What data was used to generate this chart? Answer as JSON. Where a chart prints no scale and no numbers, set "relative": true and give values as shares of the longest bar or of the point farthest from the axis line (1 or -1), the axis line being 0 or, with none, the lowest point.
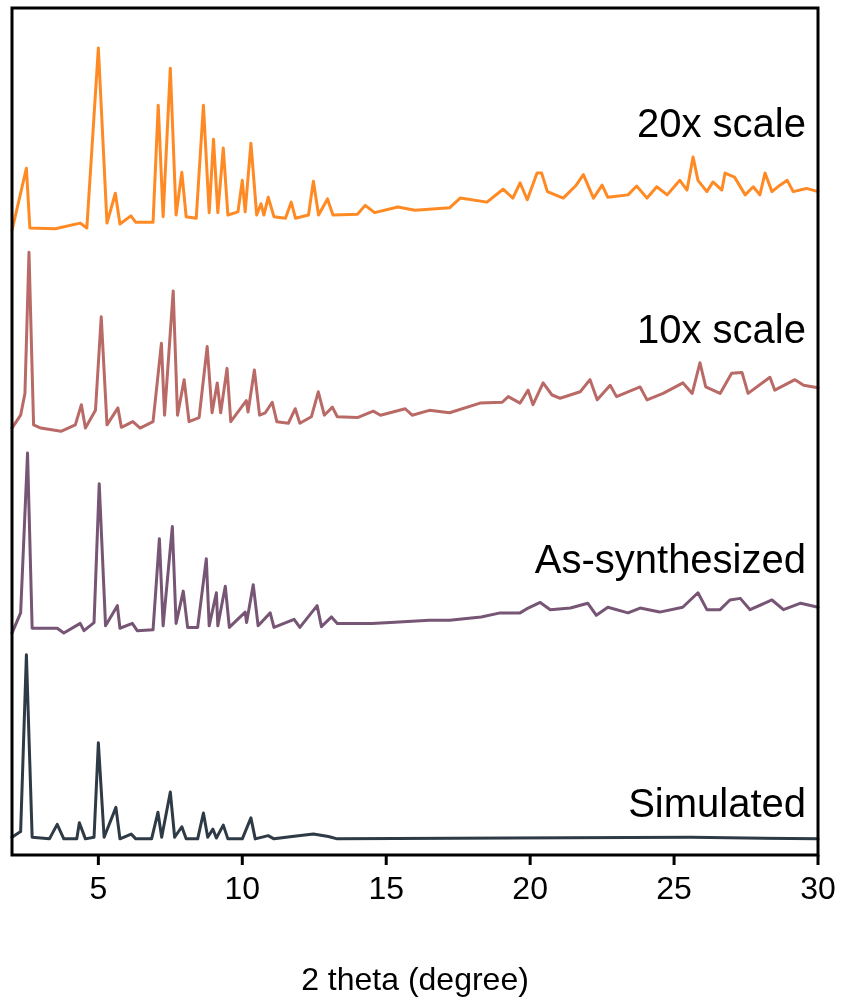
{
  "chart_data": {
    "type": "line",
    "xlabel": "2 theta (degree)",
    "xlim": [
      2,
      30
    ],
    "xticks": [
      5,
      10,
      15,
      20,
      25,
      30
    ],
    "relative": true,
    "grid": false,
    "marker": "none",
    "line_style": "solid",
    "series": [
      {
        "name": "20x scale",
        "color": "#ff8a24",
        "x": [
          2.0,
          2.5,
          2.62,
          3.5,
          4.37,
          4.6,
          5.0,
          5.3,
          5.59,
          5.75,
          6.13,
          6.3,
          6.9,
          7.08,
          7.25,
          7.5,
          7.7,
          7.9,
          8.05,
          8.4,
          8.65,
          8.85,
          9.0,
          9.15,
          9.34,
          9.5,
          9.85,
          10.0,
          10.1,
          10.3,
          10.5,
          10.65,
          10.75,
          10.9,
          11.1,
          11.5,
          11.7,
          11.85,
          12.3,
          12.47,
          12.65,
          12.96,
          13.15,
          14.0,
          14.27,
          14.6,
          15.4,
          16.0,
          17.2,
          17.57,
          18.5,
          19.06,
          19.4,
          19.65,
          19.9,
          20.24,
          20.4,
          20.6,
          21.15,
          21.6,
          21.85,
          22.2,
          22.5,
          22.7,
          23.4,
          23.7,
          24.06,
          24.4,
          24.76,
          25.2,
          25.45,
          25.66,
          25.83,
          26.14,
          26.35,
          26.66,
          26.77,
          27.1,
          27.47,
          27.75,
          27.98,
          28.16,
          28.4,
          28.68,
          28.93,
          29.14,
          29.6,
          30.0
        ],
        "values": [
          0.774,
          0.851,
          0.777,
          0.776,
          0.783,
          0.777,
          1.0,
          0.783,
          0.82,
          0.782,
          0.792,
          0.784,
          0.784,
          0.929,
          0.791,
          0.975,
          0.793,
          0.846,
          0.791,
          0.789,
          0.929,
          0.796,
          0.887,
          0.796,
          0.876,
          0.793,
          0.797,
          0.836,
          0.797,
          0.882,
          0.793,
          0.807,
          0.793,
          0.815,
          0.791,
          0.789,
          0.809,
          0.789,
          0.793,
          0.835,
          0.793,
          0.813,
          0.793,
          0.794,
          0.805,
          0.796,
          0.803,
          0.799,
          0.802,
          0.814,
          0.809,
          0.825,
          0.814,
          0.833,
          0.812,
          0.845,
          0.845,
          0.822,
          0.814,
          0.83,
          0.843,
          0.814,
          0.83,
          0.815,
          0.818,
          0.829,
          0.814,
          0.828,
          0.818,
          0.836,
          0.824,
          0.865,
          0.836,
          0.822,
          0.834,
          0.824,
          0.845,
          0.84,
          0.818,
          0.828,
          0.818,
          0.845,
          0.822,
          0.83,
          0.836,
          0.822,
          0.826,
          0.822
        ]
      },
      {
        "name": "10x scale",
        "color": "#b96a66",
        "x": [
          2.0,
          2.3,
          2.45,
          2.59,
          2.75,
          3.0,
          3.7,
          4.2,
          4.41,
          4.55,
          4.9,
          5.1,
          5.3,
          5.68,
          5.8,
          6.2,
          6.45,
          6.9,
          7.19,
          7.3,
          7.6,
          7.75,
          7.98,
          8.15,
          8.5,
          8.78,
          8.95,
          9.13,
          9.25,
          9.47,
          9.6,
          10.14,
          10.2,
          10.42,
          10.6,
          10.8,
          11.04,
          11.2,
          11.6,
          11.84,
          12.0,
          12.4,
          12.64,
          12.85,
          13.13,
          13.3,
          14.0,
          14.55,
          14.8,
          15.66,
          15.9,
          16.5,
          17.2,
          18.26,
          19.03,
          19.24,
          19.65,
          19.93,
          20.1,
          20.45,
          20.76,
          21.04,
          21.74,
          22.08,
          22.33,
          22.78,
          23.0,
          23.82,
          24.06,
          24.62,
          25.31,
          25.63,
          25.9,
          26.1,
          26.6,
          27.0,
          27.36,
          27.57,
          28.33,
          28.5,
          29.2,
          29.5,
          30.0
        ],
        "values": [
          0.529,
          0.545,
          0.572,
          0.747,
          0.533,
          0.529,
          0.525,
          0.533,
          0.558,
          0.529,
          0.551,
          0.667,
          0.533,
          0.554,
          0.53,
          0.537,
          0.529,
          0.537,
          0.634,
          0.545,
          0.699,
          0.545,
          0.589,
          0.537,
          0.542,
          0.63,
          0.548,
          0.585,
          0.548,
          0.603,
          0.537,
          0.563,
          0.549,
          0.601,
          0.545,
          0.548,
          0.561,
          0.537,
          0.535,
          0.553,
          0.535,
          0.543,
          0.574,
          0.545,
          0.555,
          0.543,
          0.542,
          0.55,
          0.545,
          0.553,
          0.545,
          0.551,
          0.548,
          0.56,
          0.561,
          0.568,
          0.56,
          0.576,
          0.558,
          0.585,
          0.57,
          0.566,
          0.574,
          0.589,
          0.564,
          0.582,
          0.568,
          0.58,
          0.564,
          0.572,
          0.585,
          0.572,
          0.61,
          0.58,
          0.572,
          0.597,
          0.598,
          0.572,
          0.592,
          0.576,
          0.589,
          0.582,
          0.579
        ]
      },
      {
        "name": "As-synthesized",
        "color": "#765575",
        "x": [
          2.0,
          2.3,
          2.54,
          2.7,
          3.57,
          3.8,
          4.37,
          4.5,
          4.85,
          5.03,
          5.25,
          5.66,
          5.75,
          6.18,
          6.35,
          6.9,
          7.12,
          7.25,
          7.57,
          7.7,
          7.95,
          8.1,
          8.45,
          8.75,
          8.85,
          9.1,
          9.15,
          9.41,
          9.55,
          10.1,
          10.15,
          10.38,
          10.55,
          10.97,
          11.1,
          11.8,
          12.0,
          12.6,
          12.75,
          13.1,
          13.3,
          14.5,
          15.14,
          16.5,
          17.2,
          18.3,
          18.96,
          19.65,
          19.93,
          20.35,
          20.7,
          21.4,
          22.0,
          22.3,
          22.7,
          23.4,
          23.82,
          24.5,
          25.3,
          25.83,
          26.14,
          26.6,
          26.94,
          27.3,
          27.64,
          28.4,
          28.8,
          29.4,
          30.0
        ],
        "values": [
          0.275,
          0.3,
          0.498,
          0.281,
          0.281,
          0.275,
          0.287,
          0.278,
          0.288,
          0.46,
          0.284,
          0.309,
          0.281,
          0.287,
          0.278,
          0.279,
          0.392,
          0.284,
          0.407,
          0.287,
          0.327,
          0.282,
          0.282,
          0.367,
          0.284,
          0.325,
          0.284,
          0.333,
          0.282,
          0.301,
          0.288,
          0.335,
          0.284,
          0.3,
          0.282,
          0.292,
          0.282,
          0.309,
          0.283,
          0.295,
          0.287,
          0.287,
          0.288,
          0.291,
          0.291,
          0.295,
          0.3,
          0.3,
          0.306,
          0.313,
          0.304,
          0.306,
          0.312,
          0.297,
          0.307,
          0.3,
          0.306,
          0.301,
          0.307,
          0.325,
          0.304,
          0.304,
          0.316,
          0.318,
          0.304,
          0.316,
          0.304,
          0.312,
          0.307
        ]
      },
      {
        "name": "Simulated",
        "color": "#2e3a45",
        "x": [
          2.0,
          2.3,
          2.5,
          2.7,
          3.3,
          3.57,
          3.8,
          4.25,
          4.34,
          4.55,
          4.85,
          5.0,
          5.2,
          5.61,
          5.75,
          6.14,
          6.3,
          6.85,
          7.07,
          7.2,
          7.5,
          7.65,
          7.9,
          8.05,
          8.45,
          8.65,
          8.8,
          8.98,
          9.1,
          9.34,
          9.5,
          10.0,
          10.3,
          10.45,
          10.9,
          11.1,
          11.73,
          12.47,
          12.99,
          13.3,
          25.6,
          30.0
        ],
        "values": [
          0.022,
          0.029,
          0.248,
          0.022,
          0.02,
          0.038,
          0.02,
          0.02,
          0.04,
          0.02,
          0.022,
          0.139,
          0.022,
          0.059,
          0.02,
          0.026,
          0.02,
          0.02,
          0.053,
          0.022,
          0.078,
          0.022,
          0.035,
          0.02,
          0.02,
          0.052,
          0.022,
          0.032,
          0.021,
          0.037,
          0.02,
          0.02,
          0.046,
          0.02,
          0.024,
          0.02,
          0.023,
          0.026,
          0.023,
          0.02,
          0.022,
          0.02
        ]
      }
    ]
  }
}
